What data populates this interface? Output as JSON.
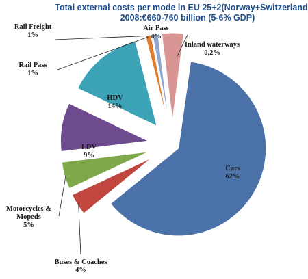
{
  "chart_data": {
    "type": "pie",
    "title": "Total external costs per mode in EU 25+2(Norway+Switzerland)",
    "subtitle": "2008:€660-760 billion (5-6% GDP)",
    "slices": [
      {
        "name": "Cars",
        "value_label": "62%",
        "value": 62.0,
        "color": "#4a72a8"
      },
      {
        "name": "Buses & Coaches",
        "value_label": "4%",
        "value": 4.0,
        "color": "#c1463f"
      },
      {
        "name": "Motorcycles & Mopeds",
        "value_label": "5%",
        "value": 5.0,
        "color": "#7fa84a"
      },
      {
        "name": "LDV",
        "value_label": "9%",
        "value": 9.0,
        "color": "#6e4b8e"
      },
      {
        "name": "HDV",
        "value_label": "14%",
        "value": 14.0,
        "color": "#3ba3b5"
      },
      {
        "name": "Rail Pass",
        "value_label": "1%",
        "value": 1.0,
        "color": "#e07b2c"
      },
      {
        "name": "Rail Freight",
        "value_label": "1%",
        "value": 1.0,
        "color": "#8fa7cf"
      },
      {
        "name": "Air Pass",
        "value_label": "4%",
        "value": 4.0,
        "color": "#d99594"
      },
      {
        "name": "Inland waterways",
        "value_label": "0,2%",
        "value": 0.2,
        "color": "#c7d78f"
      }
    ]
  }
}
